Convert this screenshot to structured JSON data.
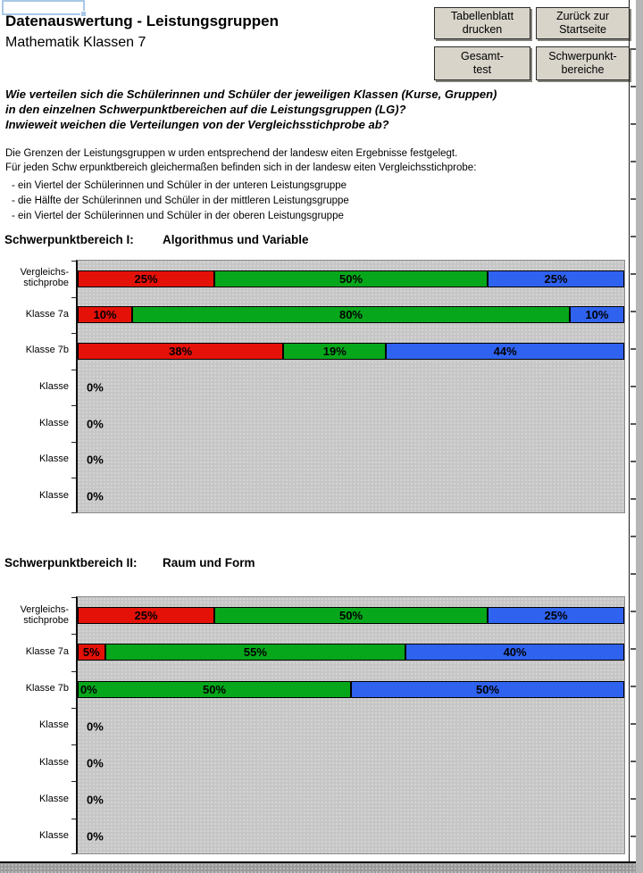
{
  "header": {
    "title": "Datenauswertung - Leistungsgruppen",
    "subtitle": "Mathematik Klassen 7"
  },
  "buttons": [
    {
      "label": "Tabellenblatt\ndrucken"
    },
    {
      "label": "Zurück zur\nStartseite"
    },
    {
      "label": "Gesamt-\ntest"
    },
    {
      "label": "Schwerpunkt-\nbereiche"
    }
  ],
  "question_lines": [
    "Wie verteilen sich die Schülerinnen und Schüler der jeweiligen Klassen (Kurse, Gruppen)",
    "in den einzelnen Schwerpunktbereichen auf die Leistungsgruppen (LG)?",
    "Inwieweit weichen die Verteilungen von der Vergleichsstichprobe ab?"
  ],
  "intro_lines": [
    "Die Grenzen der Leistungsgruppen w urden entsprechend der landesw eiten Ergebnisse festgelegt.",
    "Für jeden Schw erpunktbereich gleichermaßen befinden sich in der landesw eiten Vergleichsstichprobe:"
  ],
  "bullet_lines": [
    "- ein Viertel der Schülerinnen und Schüler in der unteren Leistungsgruppe",
    "- die Hälfte der Schülerinnen und Schüler in der mittleren Leistungsgruppe",
    "- ein Viertel der Schülerinnen und Schüler in der oberen Leistungsgruppe"
  ],
  "chart_data": [
    {
      "type": "bar",
      "stacked": true,
      "orientation": "horizontal",
      "title": "Schwerpunktbereich I:",
      "topic": "Algorithmus und Variable",
      "series": [
        "untere Leistungsgruppe",
        "mittlere Leistungsgruppe",
        "obere Leistungsgruppe"
      ],
      "colors": [
        "#e41108",
        "#07a71b",
        "#2f62ef"
      ],
      "x_range_percent": [
        0,
        100
      ],
      "legend": "none",
      "rows": [
        {
          "label": "Vergleichs-\nstichprobe",
          "values": [
            25,
            50,
            25
          ],
          "labels": [
            "25%",
            "50%",
            "25%"
          ]
        },
        {
          "label": "Klasse 7a",
          "values": [
            10,
            80,
            10
          ],
          "labels": [
            "10%",
            "80%",
            "10%"
          ]
        },
        {
          "label": "Klasse 7b",
          "values": [
            38,
            19,
            44
          ],
          "labels": [
            "38%",
            "19%",
            "44%"
          ]
        },
        {
          "label": "Klasse",
          "values": [
            0,
            0,
            0
          ],
          "labels": [
            "0%"
          ]
        },
        {
          "label": "Klasse",
          "values": [
            0,
            0,
            0
          ],
          "labels": [
            "0%"
          ]
        },
        {
          "label": "Klasse",
          "values": [
            0,
            0,
            0
          ],
          "labels": [
            "0%"
          ]
        },
        {
          "label": "Klasse",
          "values": [
            0,
            0,
            0
          ],
          "labels": [
            "0%"
          ]
        }
      ]
    },
    {
      "type": "bar",
      "stacked": true,
      "orientation": "horizontal",
      "title": "Schwerpunktbereich II:",
      "topic": "Raum und Form",
      "series": [
        "untere Leistungsgruppe",
        "mittlere Leistungsgruppe",
        "obere Leistungsgruppe"
      ],
      "colors": [
        "#e41108",
        "#07a71b",
        "#2f62ef"
      ],
      "x_range_percent": [
        0,
        100
      ],
      "legend": "none",
      "rows": [
        {
          "label": "Vergleichs-\nstichprobe",
          "values": [
            25,
            50,
            25
          ],
          "labels": [
            "25%",
            "50%",
            "25%"
          ]
        },
        {
          "label": "Klasse 7a",
          "values": [
            5,
            55,
            40
          ],
          "labels": [
            "5%",
            "55%",
            "40%"
          ]
        },
        {
          "label": "Klasse 7b",
          "values": [
            0,
            50,
            50
          ],
          "labels": [
            "0%",
            "50%",
            "50%"
          ]
        },
        {
          "label": "Klasse",
          "values": [
            0,
            0,
            0
          ],
          "labels": [
            "0%"
          ]
        },
        {
          "label": "Klasse",
          "values": [
            0,
            0,
            0
          ],
          "labels": [
            "0%"
          ]
        },
        {
          "label": "Klasse",
          "values": [
            0,
            0,
            0
          ],
          "labels": [
            "0%"
          ]
        },
        {
          "label": "Klasse",
          "values": [
            0,
            0,
            0
          ],
          "labels": [
            "0%"
          ]
        }
      ]
    }
  ]
}
